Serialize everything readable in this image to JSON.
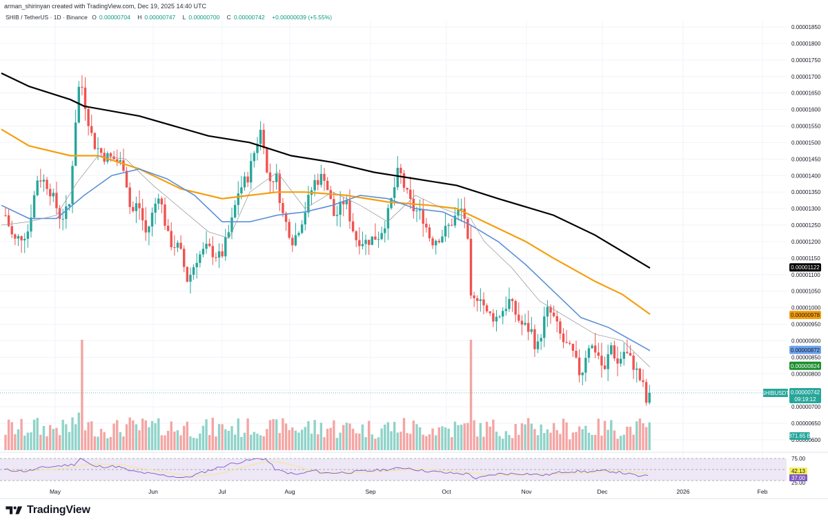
{
  "header": {
    "credit": "arman_shirinyan created with TradingView.com, Dec 19, 2025 14:40 UTC",
    "symbol": "SHIB / TetherUS · 1D · Binance",
    "ohlc": {
      "o_label": "O",
      "o_value": "0.00000704",
      "h_label": "H",
      "h_value": "0.00000747",
      "l_label": "L",
      "l_value": "0.00000700",
      "c_label": "C",
      "c_value": "0.00000742",
      "change": "+0.00000039 (+5.55%)"
    }
  },
  "footer": {
    "brand": "TradingView"
  },
  "colors": {
    "up": "#26a69a",
    "down": "#ef5350",
    "up_vol": "#8fd3c9",
    "down_vol": "#f4a5a3",
    "ma200": "#000000",
    "ma100": "#f59e0b",
    "ma50": "#5b8fd6",
    "ma20": "#9e9e9e",
    "rsi": "#7e57c2",
    "rsi_ma": "#f4e89a",
    "rsi_band": "#ede7f6"
  },
  "chart_data": {
    "type": "candlestick",
    "title": "SHIB / TetherUS · 1D · Binance",
    "xlabel": "",
    "ylabel": "Price (USDT)",
    "ylim": [
      6.3e-06,
      1.87e-05
    ],
    "y_ticks": [
      "0.00001850",
      "0.00001800",
      "0.00001750",
      "0.00001700",
      "0.00001650",
      "0.00001600",
      "0.00001550",
      "0.00001500",
      "0.00001450",
      "0.00001400",
      "0.00001350",
      "0.00001300",
      "0.00001250",
      "0.00001200",
      "0.00001150",
      "0.00001100",
      "0.00001050",
      "0.00001000",
      "0.00000950",
      "0.00000900",
      "0.00000850",
      "0.00000800",
      "0.00000750",
      "0.00000700",
      "0.00000650",
      "0.00000600"
    ],
    "x_ticks": [
      "May",
      "Jun",
      "Jul",
      "Aug",
      "Sep",
      "Oct",
      "Nov",
      "Dec",
      "2026",
      "Feb"
    ],
    "grid": true,
    "last_price": {
      "symbol": "SHIBUSDT",
      "value": "0.00000742",
      "countdown": "09:19:12"
    },
    "moving_averages": [
      {
        "name": "MA200",
        "color": "#000000",
        "last": "0.00001122",
        "points": [
          [
            0,
            1.71e-05
          ],
          [
            40,
            1.67e-05
          ],
          [
            100,
            1.63e-05
          ],
          [
            120,
            1.61e-05
          ],
          [
            200,
            1.58e-05
          ],
          [
            300,
            1.52e-05
          ],
          [
            360,
            1.5e-05
          ],
          [
            420,
            1.46e-05
          ],
          [
            480,
            1.44e-05
          ],
          [
            540,
            1.41e-05
          ],
          [
            600,
            1.39e-05
          ],
          [
            660,
            1.37e-05
          ],
          [
            720,
            1.33e-05
          ],
          [
            800,
            1.28e-05
          ],
          [
            860,
            1.22e-05
          ],
          [
            940,
            1.12e-05
          ]
        ]
      },
      {
        "name": "MA100",
        "color": "#f59e0b",
        "last": "0.00000978",
        "points": [
          [
            0,
            1.54e-05
          ],
          [
            40,
            1.49e-05
          ],
          [
            100,
            1.46e-05
          ],
          [
            140,
            1.46e-05
          ],
          [
            200,
            1.42e-05
          ],
          [
            260,
            1.36e-05
          ],
          [
            320,
            1.33e-05
          ],
          [
            360,
            1.34e-05
          ],
          [
            400,
            1.35e-05
          ],
          [
            440,
            1.35e-05
          ],
          [
            500,
            1.34e-05
          ],
          [
            560,
            1.32e-05
          ],
          [
            620,
            1.31e-05
          ],
          [
            660,
            1.3e-05
          ],
          [
            700,
            1.26e-05
          ],
          [
            760,
            1.2e-05
          ],
          [
            800,
            1.15e-05
          ],
          [
            860,
            1.08e-05
          ],
          [
            900,
            1.04e-05
          ],
          [
            940,
            9.8e-06
          ]
        ]
      },
      {
        "name": "MA50",
        "color": "#5b8fd6",
        "last": "0.00000872",
        "points": [
          [
            0,
            1.31e-05
          ],
          [
            40,
            1.27e-05
          ],
          [
            80,
            1.27e-05
          ],
          [
            120,
            1.34e-05
          ],
          [
            160,
            1.4e-05
          ],
          [
            200,
            1.42e-05
          ],
          [
            240,
            1.39e-05
          ],
          [
            280,
            1.34e-05
          ],
          [
            320,
            1.26e-05
          ],
          [
            360,
            1.26e-05
          ],
          [
            400,
            1.28e-05
          ],
          [
            440,
            1.29e-05
          ],
          [
            480,
            1.31e-05
          ],
          [
            520,
            1.34e-05
          ],
          [
            560,
            1.33e-05
          ],
          [
            600,
            1.3e-05
          ],
          [
            640,
            1.29e-05
          ],
          [
            680,
            1.25e-05
          ],
          [
            720,
            1.2e-05
          ],
          [
            760,
            1.13e-05
          ],
          [
            800,
            1.05e-05
          ],
          [
            840,
            9.7e-06
          ],
          [
            880,
            9.4e-06
          ],
          [
            940,
            8.7e-06
          ]
        ]
      },
      {
        "name": "MA20",
        "color": "#9e9e9e",
        "last": "0.00000824",
        "points": [
          [
            0,
            1.25e-05
          ],
          [
            40,
            1.26e-05
          ],
          [
            80,
            1.28e-05
          ],
          [
            110,
            1.38e-05
          ],
          [
            140,
            1.46e-05
          ],
          [
            180,
            1.45e-05
          ],
          [
            220,
            1.37e-05
          ],
          [
            260,
            1.3e-05
          ],
          [
            300,
            1.23e-05
          ],
          [
            330,
            1.21e-05
          ],
          [
            360,
            1.35e-05
          ],
          [
            400,
            1.41e-05
          ],
          [
            440,
            1.3e-05
          ],
          [
            480,
            1.35e-05
          ],
          [
            520,
            1.31e-05
          ],
          [
            560,
            1.26e-05
          ],
          [
            600,
            1.34e-05
          ],
          [
            640,
            1.3e-05
          ],
          [
            680,
            1.27e-05
          ],
          [
            700,
            1.2e-05
          ],
          [
            740,
            1.12e-05
          ],
          [
            780,
            1.02e-05
          ],
          [
            820,
            9.7e-06
          ],
          [
            860,
            9.2e-06
          ],
          [
            900,
            9e-06
          ],
          [
            940,
            8.2e-06
          ]
        ]
      }
    ],
    "candles_approx": {
      "note": "Daily candles from ~late Apr 2025 to Dec 19 2025; key swings",
      "swings": [
        {
          "date": "Late Apr",
          "close": 1.25e-05
        },
        {
          "date": "Mid May",
          "high": 1.76e-05,
          "close": 1.68e-05
        },
        {
          "date": "Early Jun",
          "close": 1.28e-05
        },
        {
          "date": "Late Jun",
          "low": 1.01e-05,
          "close": 1.12e-05
        },
        {
          "date": "Mid Jul",
          "high": 1.6e-05,
          "close": 1.55e-05
        },
        {
          "date": "Early Aug",
          "close": 1.25e-05
        },
        {
          "date": "Mid Sep",
          "high": 1.49e-05,
          "close": 1.38e-05
        },
        {
          "date": "Early Oct",
          "close": 1.28e-05
        },
        {
          "date": "Oct 10",
          "low": 7.9e-06,
          "close": 9.5e-06
        },
        {
          "date": "Nov",
          "close": 8.5e-06
        },
        {
          "date": "Dec 19",
          "open": 7.04e-06,
          "high": 7.47e-06,
          "low": 7e-06,
          "close": 7.42e-06
        }
      ]
    },
    "volume": {
      "last": "871.65 B"
    },
    "rsi": {
      "upper": "75.00",
      "lower": "25.00",
      "rsi_value": "37.00",
      "rsi_ma_value": "42.13"
    }
  },
  "price_axis_badges": [
    {
      "value": "0.00001122",
      "bg": "#000000",
      "fg": "#ffffff"
    },
    {
      "value": "0.00000978",
      "bg": "#f59e0b",
      "fg": "#131722"
    },
    {
      "value": "0.00000872",
      "bg": "#6fa3ef",
      "fg": "#131722"
    },
    {
      "value": "0.00000824",
      "bg": "#1b8f2e",
      "fg": "#ffffff"
    }
  ]
}
